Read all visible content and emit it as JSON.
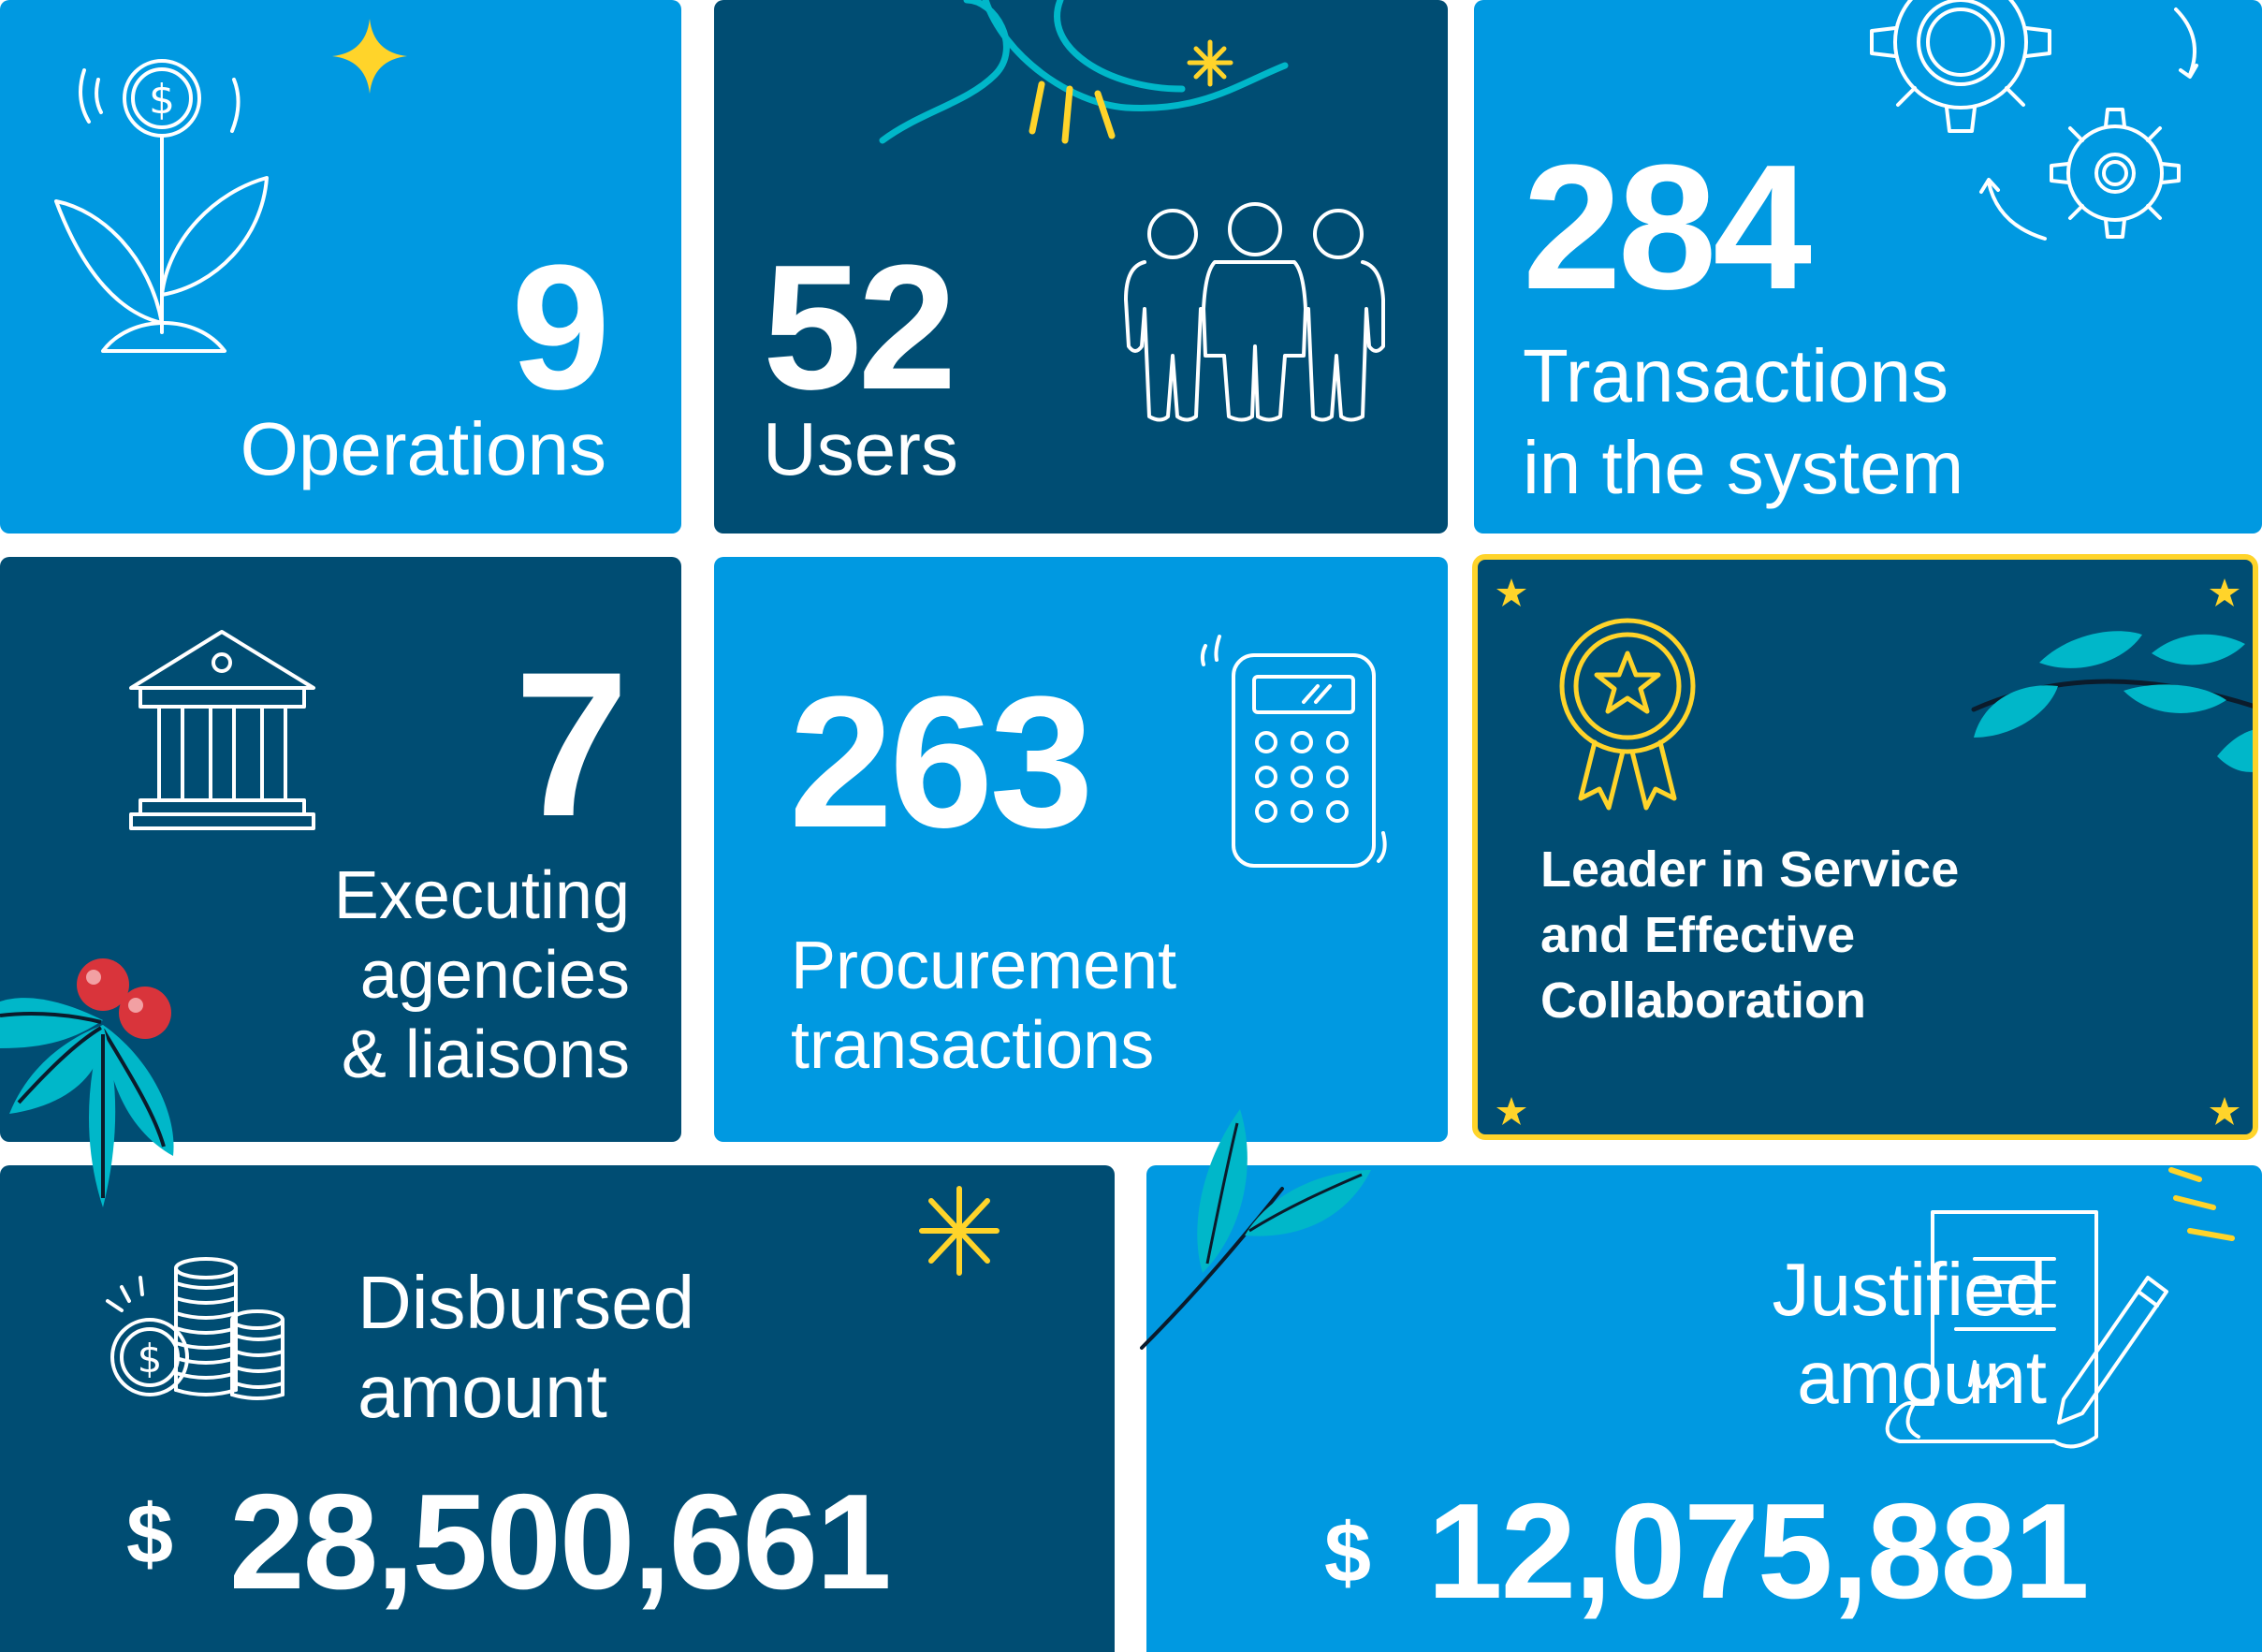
{
  "cards": {
    "operations": {
      "value": "9",
      "label": "Operations"
    },
    "users": {
      "value": "52",
      "label": "Users"
    },
    "transactions": {
      "value": "284",
      "label_line1": "Transactions",
      "label_line2": "in the system"
    },
    "agencies": {
      "value": "7",
      "label_line1": "Executing",
      "label_line2": "agencies",
      "label_line3": "& liaisons"
    },
    "procurement": {
      "value": "263",
      "label_line1": "Procurement",
      "label_line2": "transactions"
    },
    "award": {
      "line1": "Leader in Service",
      "line2": "and Effective",
      "line3": "Collaboration"
    },
    "disbursed": {
      "label_line1": "Disbursed",
      "label_line2": "amount",
      "currency": "$",
      "amount": "28,500,661"
    },
    "justified": {
      "label_line1": "Justified",
      "label_line2": "amount",
      "currency": "$",
      "amount": "12,075,881"
    }
  },
  "colors": {
    "light_card": "#0099e1",
    "dark_card": "#004d73",
    "award_border": "#ffd42a",
    "leaf": "#00b7c9",
    "berry": "#d9343b"
  },
  "icons": [
    "plant-coin-icon",
    "people-icon",
    "gears-icon",
    "bank-icon",
    "calculator-icon",
    "medal-icon",
    "coins-icon",
    "document-sign-icon"
  ]
}
